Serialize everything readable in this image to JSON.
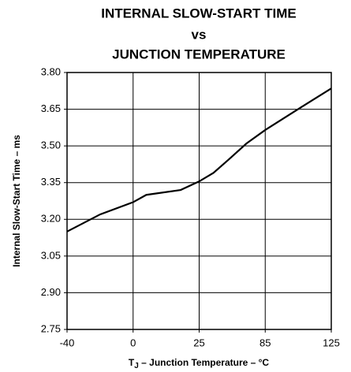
{
  "chart_data": {
    "type": "line",
    "title": [
      "INTERNAL SLOW-START TIME",
      "vs",
      "JUNCTION TEMPERATURE"
    ],
    "x_label": {
      "symbol": "T",
      "subscript": "J",
      "text": " – Junction Temperature – °C"
    },
    "y_label": "Internal Slow-Start Time – ms",
    "x": [
      -40,
      -20,
      0,
      5,
      18,
      25,
      38,
      52,
      68,
      85,
      106,
      125
    ],
    "series": [
      {
        "name": "Slow-Start Time",
        "color": "#000000",
        "values": [
          3.15,
          3.22,
          3.27,
          3.3,
          3.32,
          3.355,
          3.39,
          3.445,
          3.51,
          3.565,
          3.655,
          3.735
        ]
      }
    ],
    "xlim": [
      -40,
      125
    ],
    "xticks": [
      -40,
      0,
      25,
      85,
      125
    ],
    "ylim": [
      2.75,
      3.8
    ],
    "yticks": [
      2.75,
      {
        "value": 2.9,
        "label": "2.90"
      },
      3.05,
      {
        "value": 3.2,
        "label": "3.20"
      },
      3.35,
      {
        "value": 3.5,
        "label": "3.50"
      },
      3.65,
      {
        "value": 3.8,
        "label": "3.80"
      }
    ],
    "grid": true
  }
}
